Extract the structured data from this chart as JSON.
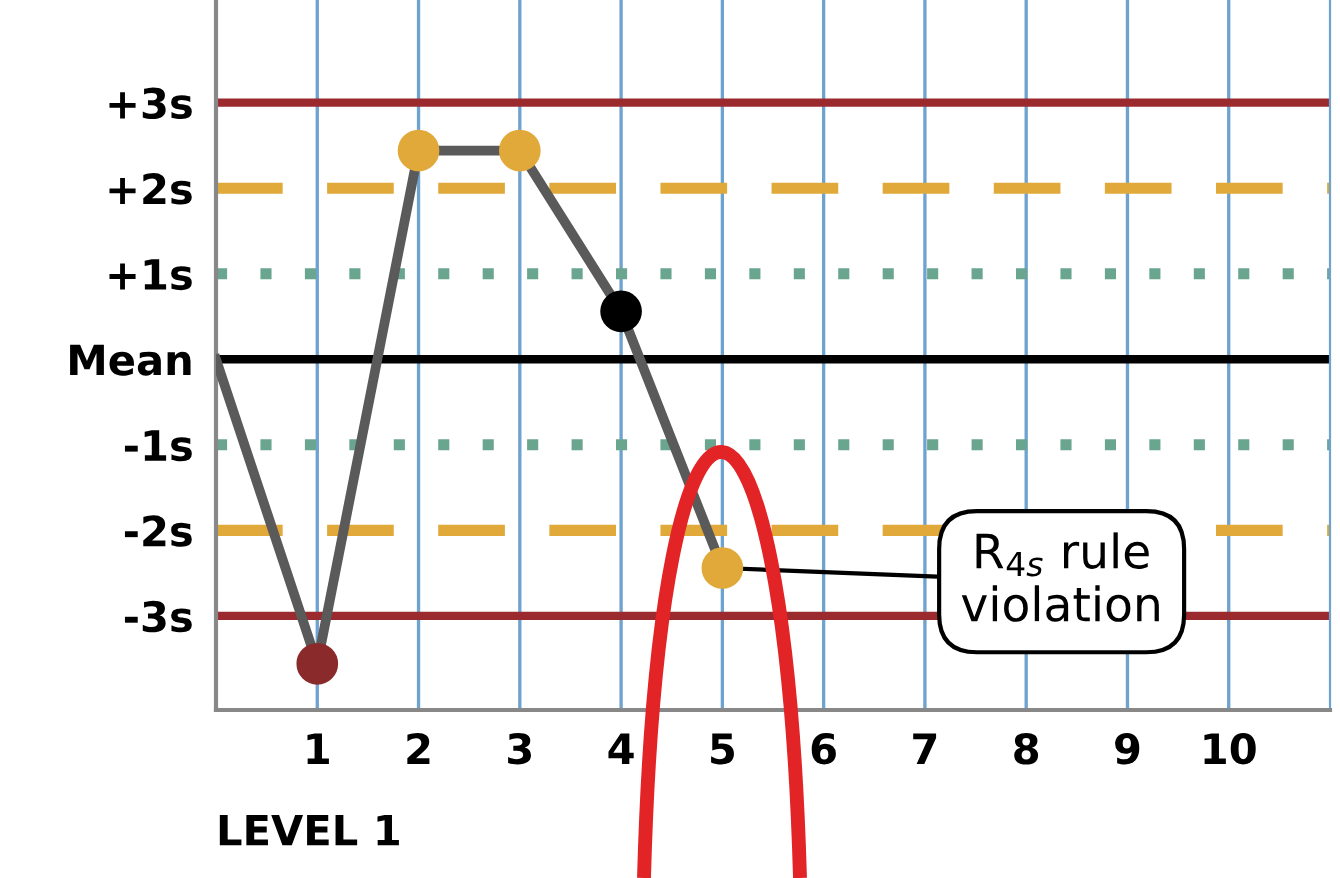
{
  "chart_data": {
    "type": "line",
    "xlabel": "LEVEL 1",
    "x": [
      0,
      1,
      2,
      3,
      4,
      5
    ],
    "series": [
      {
        "color": "#5a5a5a",
        "values": [
          0,
          -3.56,
          2.44,
          2.44,
          0.56,
          -2.44
        ],
        "colors": [
          null,
          "#8b2a2a",
          "#e0a93a",
          "#e0a93a",
          "#000000",
          "#e0a93a"
        ]
      }
    ],
    "marker": "circle",
    "xlim": [
      0,
      11
    ],
    "xticks": [
      1,
      2,
      3,
      4,
      5,
      6,
      7,
      8,
      9,
      10
    ],
    "ylim": [
      -4.1,
      4.2
    ],
    "yticks": [
      {
        "value": 3,
        "label": "+3s"
      },
      {
        "value": 2,
        "label": "+2s"
      },
      {
        "value": 1,
        "label": "+1s"
      },
      {
        "value": 0,
        "label": "Mean"
      },
      {
        "value": -1,
        "label": "-1s"
      },
      {
        "value": -2,
        "label": "-2s"
      },
      {
        "value": -3,
        "label": "-3s"
      }
    ],
    "grid": "x",
    "ref_lines": [
      {
        "axis": "y",
        "value": 3,
        "color": "#9b2a2e",
        "line_style": "solid"
      },
      {
        "axis": "y",
        "value": 2,
        "color": "#e0a93a",
        "line_style": "dashed"
      },
      {
        "axis": "y",
        "value": 1,
        "color": "#6aa590",
        "line_style": "dotted"
      },
      {
        "axis": "y",
        "value": 0,
        "color": "#000000",
        "line_style": "solid"
      },
      {
        "axis": "y",
        "value": -1,
        "color": "#6aa590",
        "line_style": "dotted"
      },
      {
        "axis": "y",
        "value": -2,
        "color": "#e0a93a",
        "line_style": "dashed"
      },
      {
        "axis": "y",
        "value": -3,
        "color": "#9b2a2e",
        "line_style": "solid"
      }
    ],
    "annotations": [
      {
        "text": "R$_{4s}$ rule\nviolation",
        "x": 5,
        "y": -2.44
      }
    ]
  }
}
